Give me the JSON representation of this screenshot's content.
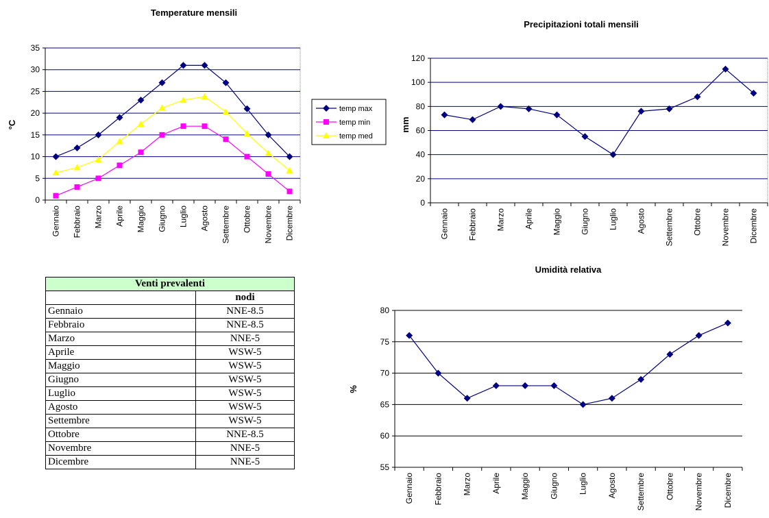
{
  "chart_data": [
    {
      "type": "line",
      "title": "Temperature mensili",
      "ylabel": "°C",
      "ylim": [
        0,
        35
      ],
      "yticks": [
        0,
        5,
        10,
        15,
        20,
        25,
        30,
        35
      ],
      "categories": [
        "Gennaio",
        "Febbraio",
        "Marzo",
        "Aprile",
        "Maggio",
        "Giugno",
        "Luglio",
        "Agosto",
        "Settembre",
        "Ottobre",
        "Novembre",
        "Dicembre"
      ],
      "series": [
        {
          "name": "temp max",
          "color": "#000080",
          "marker": "diamond",
          "values": [
            10,
            12,
            15,
            19,
            23,
            27,
            31,
            31,
            27,
            21,
            15,
            10
          ]
        },
        {
          "name": "temp min",
          "color": "#ff00ff",
          "marker": "square",
          "values": [
            1,
            3,
            5,
            8,
            11,
            15,
            17,
            17,
            14,
            10,
            6,
            2
          ]
        },
        {
          "name": "temp med",
          "color": "#ffff00",
          "marker": "triangle",
          "values": [
            6.3,
            7.5,
            9.3,
            13.5,
            17.5,
            21.2,
            23,
            23.8,
            20.3,
            15.3,
            10.8,
            6.8
          ]
        }
      ],
      "grid": true,
      "legend": "right"
    },
    {
      "type": "line",
      "title": "Precipitazioni totali mensili",
      "ylabel": "mm",
      "ylim": [
        0,
        120
      ],
      "yticks": [
        0,
        20,
        40,
        60,
        80,
        100,
        120
      ],
      "categories": [
        "Gennaio",
        "Febbraio",
        "Marzo",
        "Aprile",
        "Maggio",
        "Giugno",
        "Luglio",
        "Agosto",
        "Settembre",
        "Ottobre",
        "Novembre",
        "Dicembre"
      ],
      "series": [
        {
          "color": "#000080",
          "marker": "diamond",
          "values": [
            73,
            69,
            80,
            78,
            73,
            55,
            40,
            76,
            78,
            88,
            111,
            91
          ]
        }
      ],
      "grid": true
    },
    {
      "type": "line",
      "title": "Umidità relativa",
      "ylabel": "%",
      "ylim": [
        55,
        80
      ],
      "yticks": [
        55,
        60,
        65,
        70,
        75,
        80
      ],
      "categories": [
        "Gennaio",
        "Febbraio",
        "Marzo",
        "Aprile",
        "Maggio",
        "Giugno",
        "Luglio",
        "Agosto",
        "Settembre",
        "Ottobre",
        "Novembre",
        "Dicembre"
      ],
      "series": [
        {
          "color": "#000080",
          "marker": "diamond",
          "values": [
            76,
            70,
            66,
            68,
            68,
            68,
            65,
            66,
            69,
            73,
            76,
            78
          ]
        }
      ],
      "grid": true
    },
    {
      "type": "table",
      "title": "Venti prevalenti",
      "column_header": "nodi",
      "rows": [
        {
          "month": "Gennaio",
          "value": "NNE-8.5"
        },
        {
          "month": "Febbraio",
          "value": "NNE-8.5"
        },
        {
          "month": "Marzo",
          "value": "NNE-5"
        },
        {
          "month": "Aprile",
          "value": "WSW-5"
        },
        {
          "month": "Maggio",
          "value": "WSW-5"
        },
        {
          "month": "Giugno",
          "value": "WSW-5"
        },
        {
          "month": "Luglio",
          "value": "WSW-5"
        },
        {
          "month": "Agosto",
          "value": "WSW-5"
        },
        {
          "month": "Settembre",
          "value": "WSW-5"
        },
        {
          "month": "Ottobre",
          "value": "NNE-8.5"
        },
        {
          "month": "Novembre",
          "value": "NNE-5"
        },
        {
          "month": "Dicembre",
          "value": "NNE-5"
        }
      ],
      "header_color": "#ccffcc"
    }
  ]
}
